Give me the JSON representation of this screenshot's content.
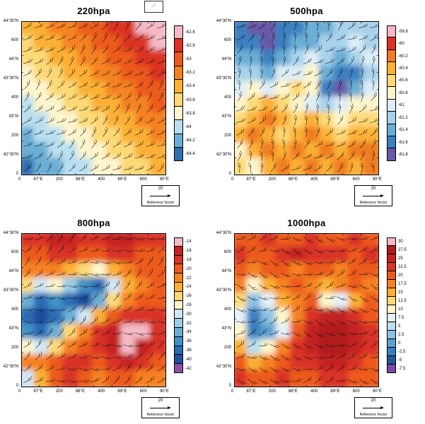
{
  "top_crop_box": {
    "glyph": "⟋"
  },
  "chart_data": [
    {
      "type": "heatmap",
      "title": "220hpa",
      "colorbar_labels": [
        "-62.6",
        "-62.8",
        "-63",
        "-63.2",
        "-63.4",
        "-63.6",
        "-63.8",
        "-64",
        "-64.2",
        "-64.4"
      ],
      "colorbar_colors": [
        "#f4b9c4",
        "#dc3123",
        "#ec5a1f",
        "#f58220",
        "#fbb034",
        "#fdd976",
        "#fdf5cc",
        "#b9dff0",
        "#6aaed6",
        "#2f6db0"
      ],
      "y_ticks": [
        "44°30'N",
        "600",
        "44°N",
        "43°30'N",
        "400",
        "43°N",
        "200",
        "42°30'N",
        "0"
      ],
      "x_ticks": [
        "0",
        "87°E",
        "200",
        "88°E",
        "400",
        "89°E",
        "600",
        "90°E"
      ],
      "reference_vector_value": "20",
      "reference_vector_label": "Reference Vector",
      "barb_angle_base": -30,
      "barb_angle_amp": 20,
      "grid": [
        [
          4,
          4,
          3,
          3,
          2,
          2,
          1,
          1,
          0,
          0
        ],
        [
          5,
          4,
          4,
          3,
          3,
          2,
          2,
          1,
          1,
          0
        ],
        [
          5,
          5,
          4,
          4,
          3,
          3,
          2,
          2,
          1,
          1
        ],
        [
          6,
          5,
          5,
          4,
          4,
          3,
          3,
          2,
          2,
          1
        ],
        [
          6,
          6,
          5,
          5,
          4,
          4,
          3,
          3,
          2,
          2
        ],
        [
          7,
          6,
          6,
          5,
          5,
          4,
          4,
          3,
          3,
          2
        ],
        [
          7,
          7,
          6,
          6,
          5,
          5,
          4,
          4,
          3,
          3
        ],
        [
          8,
          7,
          7,
          6,
          6,
          5,
          5,
          4,
          4,
          3
        ],
        [
          8,
          8,
          7,
          7,
          6,
          6,
          5,
          5,
          4,
          4
        ],
        [
          9,
          8,
          8,
          7,
          7,
          6,
          6,
          5,
          5,
          4
        ]
      ]
    },
    {
      "type": "heatmap",
      "title": "500hpa",
      "colorbar_labels": [
        "-59.8",
        "-60",
        "-60.2",
        "-60.4",
        "-60.6",
        "-60.8",
        "-61",
        "-61.2",
        "-61.4",
        "-61.6",
        "-61.8"
      ],
      "colorbar_colors": [
        "#f4b9c4",
        "#dc3123",
        "#f07b20",
        "#fbb034",
        "#fdd976",
        "#fdf5cc",
        "#dcedf7",
        "#a8d2ec",
        "#6aaed6",
        "#3a80c0",
        "#6a58a8"
      ],
      "y_ticks": [
        "44°30'N",
        "600",
        "44°N",
        "43°30'N",
        "400",
        "43°N",
        "200",
        "42°30'N",
        "0"
      ],
      "x_ticks": [
        "0",
        "87°E",
        "200",
        "88°E",
        "400",
        "89°E",
        "600",
        "90°E"
      ],
      "reference_vector_value": "20",
      "reference_vector_label": "Reference Vector",
      "barb_angle_base": -50,
      "barb_angle_amp": 35,
      "grid": [
        [
          9,
          10,
          10,
          9,
          9,
          8,
          8,
          7,
          7,
          7
        ],
        [
          9,
          9,
          10,
          9,
          8,
          8,
          7,
          7,
          6,
          7
        ],
        [
          8,
          8,
          9,
          8,
          7,
          6,
          7,
          8,
          7,
          6
        ],
        [
          7,
          7,
          8,
          6,
          6,
          5,
          8,
          9,
          9,
          7
        ],
        [
          6,
          5,
          6,
          5,
          4,
          5,
          9,
          10,
          8,
          6
        ],
        [
          5,
          4,
          3,
          4,
          5,
          6,
          7,
          6,
          5,
          5
        ],
        [
          4,
          3,
          2,
          3,
          4,
          3,
          4,
          5,
          4,
          4
        ],
        [
          3,
          2,
          3,
          4,
          3,
          2,
          3,
          4,
          3,
          3
        ],
        [
          5,
          3,
          2,
          3,
          2,
          3,
          2,
          3,
          2,
          2
        ],
        [
          4,
          5,
          3,
          2,
          3,
          2,
          3,
          2,
          3,
          2
        ]
      ]
    },
    {
      "type": "heatmap",
      "title": "800hpa",
      "colorbar_labels": [
        "-14",
        "-16",
        "-18",
        "-20",
        "-22",
        "-24",
        "-26",
        "-28",
        "-30",
        "-32",
        "-34",
        "-36",
        "-38",
        "-40",
        "-42"
      ],
      "colorbar_colors": [
        "#f4b9c4",
        "#c42320",
        "#d93327",
        "#ec5a1f",
        "#f58220",
        "#fbb034",
        "#fdd976",
        "#fdf5cc",
        "#cfe7f5",
        "#9ccee8",
        "#6aaed6",
        "#4292c6",
        "#2b6cb3",
        "#1f4e9c",
        "#8a4fa8"
      ],
      "y_ticks": [
        "44°30'N",
        "600",
        "44°N",
        "43°30'N",
        "400",
        "43°N",
        "200",
        "42°30'N",
        "0"
      ],
      "x_ticks": [
        "0",
        "87°E",
        "200",
        "88°E",
        "400",
        "89°E",
        "600",
        "90°E"
      ],
      "reference_vector_value": "20",
      "reference_vector_label": "Reference Vector",
      "barb_angle_base": -15,
      "barb_angle_amp": 30,
      "grid": [
        [
          2,
          2,
          1,
          1,
          2,
          2,
          1,
          1,
          2,
          2
        ],
        [
          3,
          3,
          2,
          2,
          3,
          3,
          2,
          2,
          3,
          3
        ],
        [
          4,
          4,
          4,
          5,
          6,
          7,
          5,
          4,
          3,
          3
        ],
        [
          6,
          8,
          7,
          9,
          11,
          12,
          8,
          5,
          4,
          3
        ],
        [
          10,
          12,
          11,
          12,
          13,
          10,
          6,
          4,
          3,
          3
        ],
        [
          12,
          13,
          12,
          10,
          8,
          5,
          3,
          2,
          2,
          2
        ],
        [
          11,
          12,
          10,
          6,
          4,
          2,
          1,
          0,
          0,
          2
        ],
        [
          7,
          8,
          6,
          4,
          3,
          2,
          1,
          0,
          1,
          2
        ],
        [
          4,
          4,
          3,
          2,
          2,
          3,
          2,
          1,
          2,
          3
        ],
        [
          8,
          5,
          3,
          2,
          3,
          4,
          3,
          3,
          4,
          4
        ]
      ]
    },
    {
      "type": "heatmap",
      "title": "1000hpa",
      "colorbar_labels": [
        "30",
        "27.5",
        "25",
        "22.5",
        "20",
        "17.5",
        "15",
        "12.5",
        "10",
        "7.5",
        "5",
        "2.5",
        "0",
        "-2.5",
        "-5",
        "-7.5"
      ],
      "colorbar_colors": [
        "#f4b9c4",
        "#b01c1c",
        "#c42320",
        "#d93327",
        "#ec5a1f",
        "#f58220",
        "#fbb034",
        "#fdd976",
        "#fdf5cc",
        "#e4f1f9",
        "#b9dff0",
        "#8cc3e4",
        "#5aa2d0",
        "#3a80c0",
        "#27559c",
        "#7a48a8"
      ],
      "y_ticks": [
        "44°30'N",
        "600",
        "44°N",
        "43°30'N",
        "400",
        "43°N",
        "200",
        "42°30'N",
        "0"
      ],
      "x_ticks": [
        "0",
        "87°E",
        "200",
        "88°E",
        "400",
        "89°E",
        "600",
        "90°E"
      ],
      "reference_vector_value": "20",
      "reference_vector_label": "Reference Vector",
      "barb_angle_base": 10,
      "barb_angle_amp": 35,
      "grid": [
        [
          4,
          4,
          3,
          4,
          4,
          3,
          4,
          4,
          3,
          4
        ],
        [
          3,
          4,
          4,
          3,
          2,
          3,
          3,
          3,
          4,
          3
        ],
        [
          4,
          5,
          4,
          4,
          5,
          4,
          4,
          5,
          4,
          4
        ],
        [
          5,
          8,
          6,
          5,
          4,
          5,
          6,
          5,
          4,
          5
        ],
        [
          7,
          11,
          9,
          6,
          5,
          4,
          8,
          9,
          6,
          4
        ],
        [
          9,
          13,
          11,
          8,
          5,
          3,
          2,
          2,
          3,
          4
        ],
        [
          8,
          13,
          12,
          9,
          4,
          2,
          1,
          1,
          2,
          3
        ],
        [
          6,
          10,
          8,
          5,
          3,
          2,
          1,
          1,
          2,
          3
        ],
        [
          4,
          6,
          5,
          4,
          3,
          3,
          2,
          2,
          3,
          4
        ],
        [
          3,
          4,
          4,
          3,
          4,
          4,
          3,
          3,
          4,
          4
        ]
      ]
    }
  ]
}
